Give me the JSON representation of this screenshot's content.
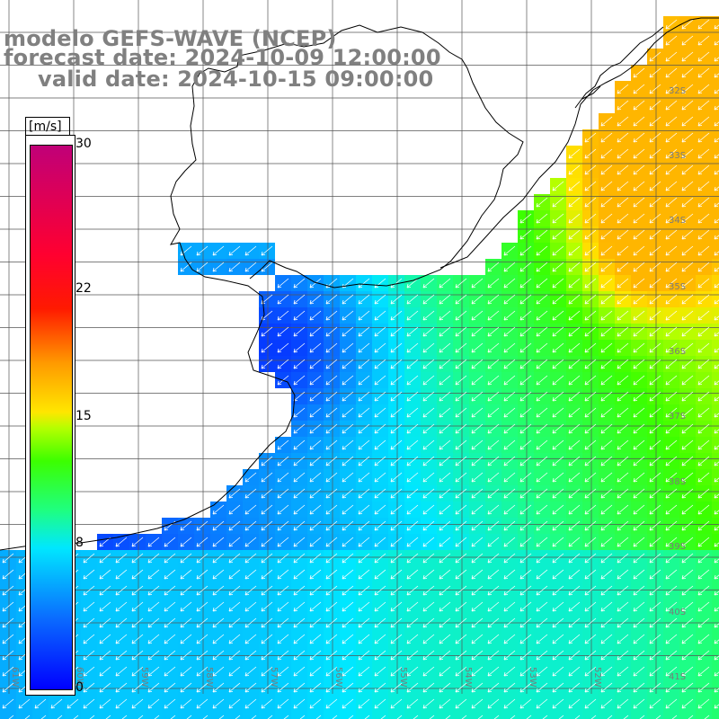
{
  "title": {
    "line1": "modelo GEFS-WAVE (NCEP)",
    "line2": "forecast date: 2024-10-09 12:00:00",
    "line3": "valid date: 2024-10-15 09:00:00"
  },
  "colorbar": {
    "unit": "[m/s]",
    "ticks": [
      "30",
      "22",
      "15",
      "8",
      "0"
    ],
    "range": [
      0,
      30
    ],
    "colors": [
      "#0000ff",
      "#0a6bff",
      "#00e7ff",
      "#1fff7f",
      "#3cff00",
      "#b4ff00",
      "#ffe600",
      "#ff9a00",
      "#ff1a00",
      "#ff0030",
      "#c00078"
    ]
  },
  "lat_labels": [
    "32S",
    "33S",
    "34S",
    "35S",
    "36S",
    "37S",
    "38S",
    "39S",
    "40S",
    "41S"
  ],
  "lon_labels": [
    "61W",
    "60W",
    "59W",
    "58W",
    "57W",
    "56W",
    "55W",
    "54W",
    "53W",
    "52W"
  ],
  "map": {
    "land_color": "#ffffff",
    "coast_color": "#000000",
    "grid_color": "#555555",
    "arrow_color": "#ffffff"
  }
}
